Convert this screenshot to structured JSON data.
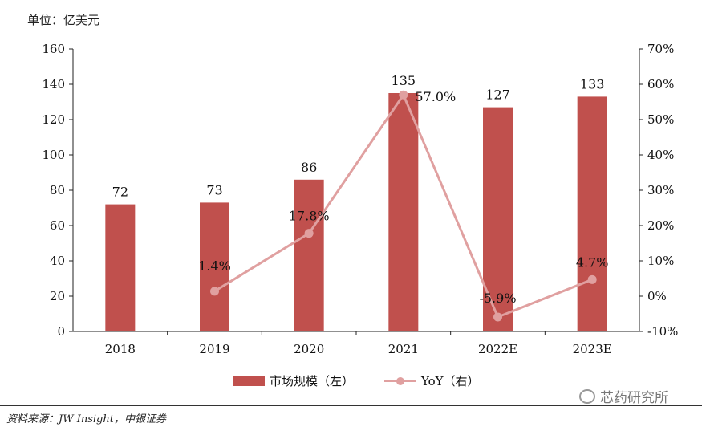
{
  "unit_label": "单位：亿美元",
  "source": "资料来源：JW Insight，中银证券",
  "watermark": "芯药研究所",
  "colors": {
    "bar": "#c0504d",
    "line": "#e0a0a0"
  },
  "chart_data": {
    "type": "bar",
    "categories": [
      "2018",
      "2019",
      "2020",
      "2021",
      "2022E",
      "2023E"
    ],
    "series": [
      {
        "name": "市场规模（左）",
        "type": "bar",
        "axis": "left",
        "values": [
          72,
          73,
          86,
          135,
          127,
          133
        ],
        "labels": [
          "72",
          "73",
          "86",
          "135",
          "127",
          "133"
        ]
      },
      {
        "name": "YoY（右）",
        "type": "line",
        "axis": "right",
        "values": [
          null,
          1.4,
          17.8,
          57.0,
          -5.9,
          4.7
        ],
        "labels": [
          null,
          "1.4%",
          "17.8%",
          "57.0%",
          "-5.9%",
          "4.7%"
        ]
      }
    ],
    "left_axis": {
      "min": 0,
      "max": 160,
      "ticks": [
        "0",
        "20",
        "40",
        "60",
        "80",
        "100",
        "120",
        "140",
        "160"
      ]
    },
    "right_axis": {
      "min": -10,
      "max": 70,
      "ticks": [
        "-10%",
        "0%",
        "10%",
        "20%",
        "30%",
        "40%",
        "50%",
        "60%",
        "70%"
      ]
    },
    "legend_position": "bottom",
    "grid": false
  }
}
